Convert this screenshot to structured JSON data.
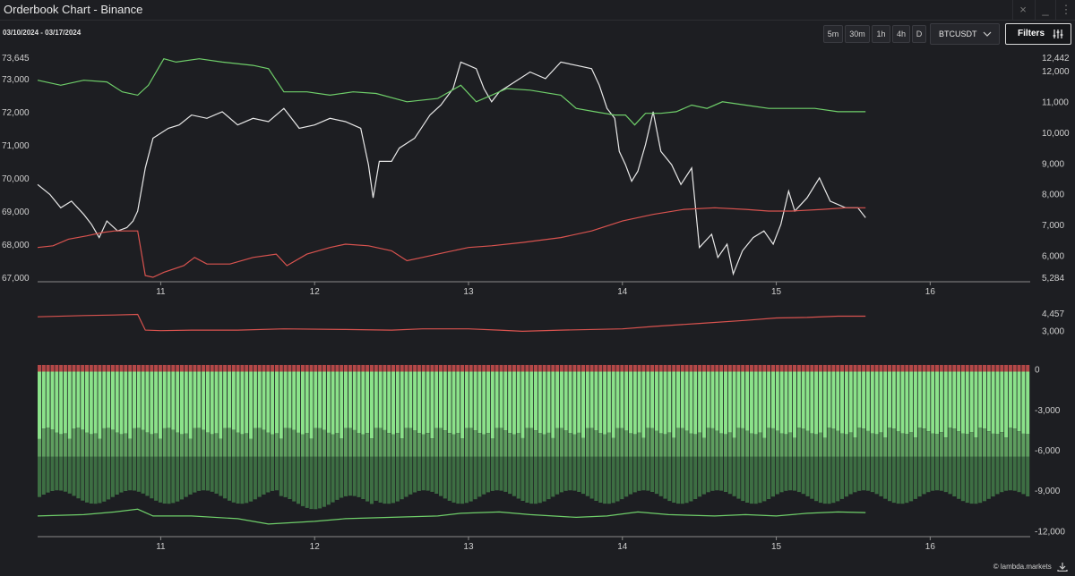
{
  "window": {
    "title": "Orderbook Chart - Binance",
    "controls": [
      "×",
      "_",
      "⋮"
    ]
  },
  "toolbar": {
    "date_range": "03/10/2024 - 03/17/2024",
    "timeframes": [
      "5m",
      "30m",
      "1h",
      "4h",
      "D"
    ],
    "symbol": "BTCUSDT",
    "symbol_icon": "chevron-down-icon",
    "filters_label": "Filters",
    "filters_icon": "sliders-icon"
  },
  "footer": {
    "brand": "© lambda.markets",
    "download_icon": "download-icon"
  },
  "colors": {
    "background": "#1d1e22",
    "price": "#e8e8e8",
    "bids": "#6fcf6a",
    "asks": "#d9534f",
    "bar_light": "#8be28a",
    "bar_dark": "#3d6e43",
    "bar_top": "#b44848"
  },
  "chart_data": [
    {
      "type": "line",
      "panel": "main",
      "x_ticks": [
        "11",
        "12",
        "13",
        "14",
        "15",
        "16"
      ],
      "x_tick_pos": [
        10.8,
        11.8,
        12.8,
        13.8,
        14.8,
        15.8
      ],
      "x_range": [
        10,
        16.45
      ],
      "left_axis": {
        "ticks": [
          "73,645",
          "73,000",
          "72,000",
          "71,000",
          "70,000",
          "69,000",
          "68,000",
          "67,000"
        ],
        "tick_values": [
          73645,
          73000,
          72000,
          71000,
          70000,
          69000,
          68000,
          67000
        ],
        "range": [
          67000,
          73645
        ]
      },
      "right_axis": {
        "ticks": [
          "12,442",
          "12,000",
          "11,000",
          "10,000",
          "9,000",
          "8,000",
          "7,000",
          "6,000",
          "5,284"
        ],
        "tick_values": [
          12442,
          12000,
          11000,
          10000,
          9000,
          8000,
          7000,
          6000,
          5284
        ],
        "range": [
          5284,
          12442
        ]
      },
      "series": [
        {
          "axis": "left",
          "color": "#e8e8e8",
          "points": [
            [
              10,
              69800
            ],
            [
              10.08,
              69500
            ],
            [
              10.15,
              69100
            ],
            [
              10.22,
              69300
            ],
            [
              10.3,
              68900
            ],
            [
              10.35,
              68600
            ],
            [
              10.4,
              68200
            ],
            [
              10.45,
              68700
            ],
            [
              10.52,
              68400
            ],
            [
              10.58,
              68500
            ],
            [
              10.62,
              68700
            ],
            [
              10.65,
              69000
            ],
            [
              10.7,
              70300
            ],
            [
              10.75,
              71200
            ],
            [
              10.85,
              71500
            ],
            [
              10.92,
              71600
            ],
            [
              11.0,
              71900
            ],
            [
              11.1,
              71800
            ],
            [
              11.2,
              72000
            ],
            [
              11.3,
              71600
            ],
            [
              11.4,
              71800
            ],
            [
              11.5,
              71700
            ],
            [
              11.6,
              72100
            ],
            [
              11.7,
              71500
            ],
            [
              11.8,
              71600
            ],
            [
              11.9,
              71800
            ],
            [
              12.0,
              71700
            ],
            [
              12.1,
              71500
            ],
            [
              12.15,
              70400
            ],
            [
              12.18,
              69400
            ],
            [
              12.22,
              70500
            ],
            [
              12.3,
              70500
            ],
            [
              12.35,
              70900
            ],
            [
              12.45,
              71200
            ],
            [
              12.55,
              71900
            ],
            [
              12.62,
              72200
            ],
            [
              12.7,
              72700
            ],
            [
              12.75,
              73500
            ],
            [
              12.8,
              73400
            ],
            [
              12.85,
              73300
            ],
            [
              12.9,
              72700
            ],
            [
              12.95,
              72300
            ],
            [
              13.0,
              72600
            ],
            [
              13.1,
              72900
            ],
            [
              13.2,
              73200
            ],
            [
              13.3,
              73000
            ],
            [
              13.4,
              73500
            ],
            [
              13.5,
              73400
            ],
            [
              13.6,
              73300
            ],
            [
              13.65,
              72800
            ],
            [
              13.7,
              72100
            ],
            [
              13.75,
              71800
            ],
            [
              13.78,
              70800
            ],
            [
              13.82,
              70400
            ],
            [
              13.86,
              69900
            ],
            [
              13.9,
              70200
            ],
            [
              13.95,
              71000
            ],
            [
              14.0,
              72000
            ],
            [
              14.05,
              70800
            ],
            [
              14.12,
              70400
            ],
            [
              14.18,
              69800
            ],
            [
              14.25,
              70300
            ],
            [
              14.3,
              67900
            ],
            [
              14.38,
              68300
            ],
            [
              14.42,
              67600
            ],
            [
              14.48,
              68000
            ],
            [
              14.52,
              67100
            ],
            [
              14.58,
              67800
            ],
            [
              14.65,
              68200
            ],
            [
              14.72,
              68400
            ],
            [
              14.78,
              68000
            ],
            [
              14.83,
              68600
            ],
            [
              14.88,
              69600
            ],
            [
              14.92,
              69000
            ],
            [
              15.0,
              69400
            ],
            [
              15.08,
              70000
            ],
            [
              15.15,
              69300
            ],
            [
              15.25,
              69100
            ],
            [
              15.33,
              69100
            ],
            [
              15.38,
              68800
            ]
          ]
        },
        {
          "axis": "left",
          "color": "#6fcf6a",
          "points": [
            [
              10,
              72950
            ],
            [
              10.15,
              72800
            ],
            [
              10.3,
              72950
            ],
            [
              10.45,
              72900
            ],
            [
              10.55,
              72600
            ],
            [
              10.65,
              72500
            ],
            [
              10.72,
              72800
            ],
            [
              10.82,
              73600
            ],
            [
              10.9,
              73500
            ],
            [
              11.05,
              73600
            ],
            [
              11.2,
              73500
            ],
            [
              11.4,
              73400
            ],
            [
              11.5,
              73300
            ],
            [
              11.6,
              72600
            ],
            [
              11.75,
              72600
            ],
            [
              11.9,
              72500
            ],
            [
              12.05,
              72600
            ],
            [
              12.2,
              72550
            ],
            [
              12.4,
              72300
            ],
            [
              12.6,
              72400
            ],
            [
              12.75,
              72800
            ],
            [
              12.85,
              72300
            ],
            [
              12.95,
              72500
            ],
            [
              13.05,
              72700
            ],
            [
              13.2,
              72650
            ],
            [
              13.4,
              72500
            ],
            [
              13.5,
              72100
            ],
            [
              13.62,
              72000
            ],
            [
              13.75,
              71900
            ],
            [
              13.82,
              71900
            ],
            [
              13.88,
              71600
            ],
            [
              13.95,
              71950
            ],
            [
              14.05,
              71950
            ],
            [
              14.15,
              72000
            ],
            [
              14.25,
              72200
            ],
            [
              14.35,
              72100
            ],
            [
              14.45,
              72300
            ],
            [
              14.6,
              72200
            ],
            [
              14.75,
              72100
            ],
            [
              14.9,
              72100
            ],
            [
              15.05,
              72100
            ],
            [
              15.2,
              72000
            ],
            [
              15.38,
              72000
            ]
          ]
        },
        {
          "axis": "left",
          "color": "#d9534f",
          "points": [
            [
              10,
              67900
            ],
            [
              10.1,
              67950
            ],
            [
              10.2,
              68150
            ],
            [
              10.32,
              68250
            ],
            [
              10.42,
              68350
            ],
            [
              10.5,
              68400
            ],
            [
              10.65,
              68400
            ],
            [
              10.7,
              67050
            ],
            [
              10.75,
              67000
            ],
            [
              10.82,
              67150
            ],
            [
              10.95,
              67350
            ],
            [
              11.02,
              67600
            ],
            [
              11.1,
              67400
            ],
            [
              11.25,
              67400
            ],
            [
              11.4,
              67600
            ],
            [
              11.55,
              67700
            ],
            [
              11.62,
              67350
            ],
            [
              11.75,
              67700
            ],
            [
              11.9,
              67900
            ],
            [
              12.0,
              68000
            ],
            [
              12.15,
              67950
            ],
            [
              12.3,
              67800
            ],
            [
              12.4,
              67500
            ],
            [
              12.5,
              67600
            ],
            [
              12.65,
              67750
            ],
            [
              12.8,
              67900
            ],
            [
              12.95,
              67950
            ],
            [
              13.15,
              68050
            ],
            [
              13.4,
              68200
            ],
            [
              13.6,
              68400
            ],
            [
              13.8,
              68700
            ],
            [
              14.0,
              68900
            ],
            [
              14.2,
              69050
            ],
            [
              14.4,
              69100
            ],
            [
              14.6,
              69050
            ],
            [
              14.75,
              69000
            ],
            [
              14.9,
              69000
            ],
            [
              15.1,
              69050
            ],
            [
              15.25,
              69100
            ],
            [
              15.38,
              69100
            ]
          ]
        }
      ]
    },
    {
      "type": "line",
      "panel": "middle",
      "right_axis": {
        "ticks": [
          "4,457",
          "3,000"
        ],
        "tick_values": [
          4457,
          3000
        ],
        "range": [
          1500,
          5200
        ]
      },
      "series": [
        {
          "color": "#d9534f",
          "points": [
            [
              10,
              4150
            ],
            [
              10.3,
              4250
            ],
            [
              10.5,
              4300
            ],
            [
              10.65,
              4350
            ],
            [
              10.7,
              3050
            ],
            [
              10.8,
              3000
            ],
            [
              11.0,
              3050
            ],
            [
              11.3,
              3050
            ],
            [
              11.6,
              3150
            ],
            [
              12.0,
              3100
            ],
            [
              12.3,
              3050
            ],
            [
              12.5,
              3150
            ],
            [
              12.8,
              3150
            ],
            [
              13.0,
              3050
            ],
            [
              13.15,
              2950
            ],
            [
              13.4,
              3050
            ],
            [
              13.8,
              3150
            ],
            [
              14.0,
              3350
            ],
            [
              14.3,
              3600
            ],
            [
              14.6,
              3850
            ],
            [
              14.8,
              4050
            ],
            [
              15.0,
              4100
            ],
            [
              15.2,
              4200
            ],
            [
              15.38,
              4200
            ]
          ]
        }
      ]
    },
    {
      "type": "bar",
      "panel": "depth",
      "right_axis": {
        "ticks": [
          "0",
          "-3,000",
          "-6,000",
          "-9,000",
          "-12,000"
        ],
        "tick_values": [
          0,
          -3000,
          -6000,
          -9000,
          -12000
        ],
        "range": [
          -12300,
          300
        ]
      },
      "bands": {
        "light_depth_start": -3000,
        "light_depth_end": -4600,
        "dark_depth_start": -6500,
        "dark_depth_end": -9500
      },
      "series": [
        {
          "name": "",
          "color": "#6fcf6a",
          "points": [
            [
              10,
              -10900
            ],
            [
              10.3,
              -10800
            ],
            [
              10.5,
              -10600
            ],
            [
              10.65,
              -10400
            ],
            [
              10.75,
              -10900
            ],
            [
              11.0,
              -10900
            ],
            [
              11.3,
              -11100
            ],
            [
              11.5,
              -11500
            ],
            [
              11.65,
              -11400
            ],
            [
              11.8,
              -11300
            ],
            [
              12.0,
              -11100
            ],
            [
              12.3,
              -11000
            ],
            [
              12.6,
              -10900
            ],
            [
              12.75,
              -10700
            ],
            [
              13.0,
              -10600
            ],
            [
              13.2,
              -10800
            ],
            [
              13.5,
              -11000
            ],
            [
              13.7,
              -10900
            ],
            [
              13.9,
              -10600
            ],
            [
              14.1,
              -10800
            ],
            [
              14.4,
              -10900
            ],
            [
              14.6,
              -10800
            ],
            [
              14.8,
              -10900
            ],
            [
              15.0,
              -10700
            ],
            [
              15.2,
              -10600
            ],
            [
              15.38,
              -10650
            ]
          ]
        }
      ]
    }
  ]
}
